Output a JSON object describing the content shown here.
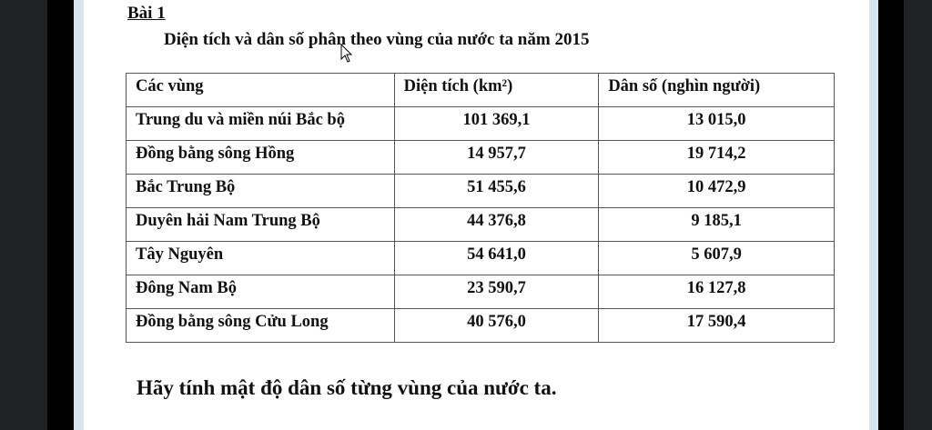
{
  "title": "Bài 1",
  "subtitle": "Diện tích và dân số phân theo vùng của nước ta năm 2015",
  "table": {
    "headers": [
      "Các vùng",
      "Diện tích (km²)",
      "Dân số (nghìn người)"
    ],
    "rows": [
      [
        "Trung du và miền núi Bắc bộ",
        "101 369,1",
        "13 015,0"
      ],
      [
        "Đồng bằng sông Hồng",
        "14 957,7",
        "19 714,2"
      ],
      [
        "Bắc Trung Bộ",
        "51 455,6",
        "10 472,9"
      ],
      [
        "Duyên hải Nam Trung Bộ",
        "44 376,8",
        "9 185,1"
      ],
      [
        "Tây Nguyên",
        "54 641,0",
        "5 607,9"
      ],
      [
        "Đông Nam Bộ",
        "23 590,7",
        "16 127,8"
      ],
      [
        "Đồng bằng sông Cửu Long",
        "40 576,0",
        "17 590,4"
      ]
    ]
  },
  "question": "Hãy tính mật độ dân số từng vùng của nước  ta."
}
